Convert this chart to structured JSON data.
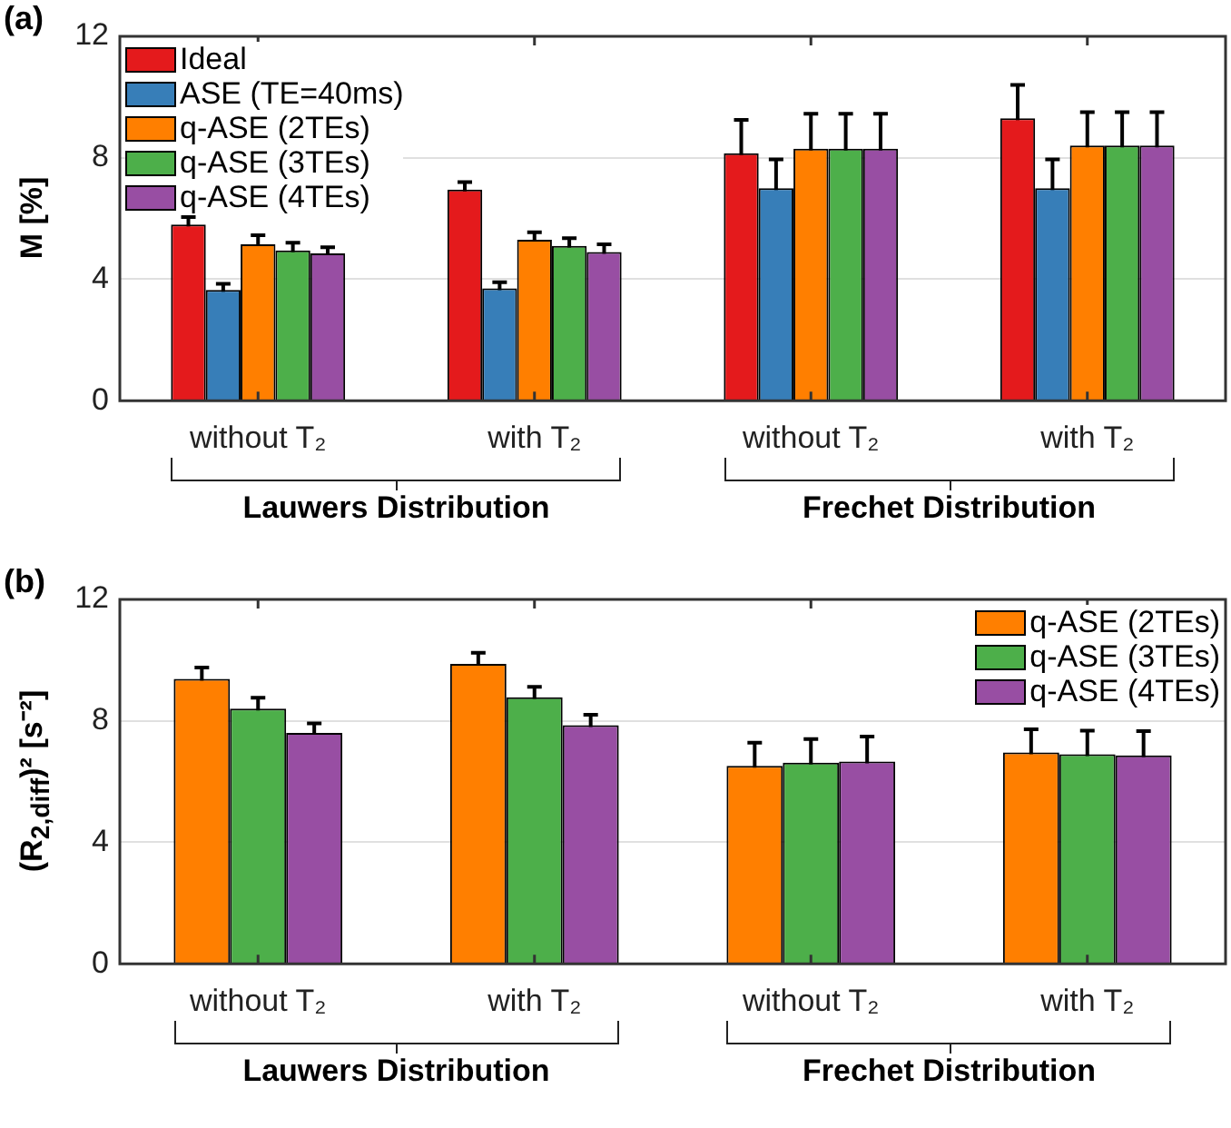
{
  "chart_data": [
    {
      "type": "bar",
      "title": "(a)",
      "ylabel": "M [%]",
      "categories": [
        "without T₂",
        "with T₂",
        "without T₂",
        "with T₂"
      ],
      "ylim": [
        0,
        12
      ],
      "yticks": [
        0,
        4,
        8,
        12
      ],
      "grid": "y",
      "legend": "top left",
      "annotations": [
        "Lauwers Distribution",
        "Frechet Distribution"
      ],
      "series": [
        {
          "name": "Ideal",
          "color": "#e41a1c",
          "values": [
            5.8,
            6.95,
            8.15,
            9.3
          ],
          "errors": [
            0.25,
            0.25,
            1.1,
            1.1
          ]
        },
        {
          "name": "ASE (TE=40ms)",
          "color": "#377eb8",
          "values": [
            3.65,
            3.7,
            7.0,
            7.0
          ],
          "errors": [
            0.2,
            0.2,
            0.95,
            0.95
          ]
        },
        {
          "name": "q-ASE (2TEs)",
          "color": "#ff7f00",
          "values": [
            5.15,
            5.3,
            8.3,
            8.4
          ],
          "errors": [
            0.3,
            0.25,
            1.15,
            1.1
          ]
        },
        {
          "name": "q-ASE (3TEs)",
          "color": "#4daf4a",
          "values": [
            4.95,
            5.1,
            8.3,
            8.4
          ],
          "errors": [
            0.25,
            0.25,
            1.15,
            1.1
          ]
        },
        {
          "name": "q-ASE (4TEs)",
          "color": "#984ea3",
          "values": [
            4.85,
            4.9,
            8.3,
            8.4
          ],
          "errors": [
            0.2,
            0.25,
            1.15,
            1.1
          ]
        }
      ]
    },
    {
      "type": "bar",
      "title": "(b)",
      "ylabel": "(R$_{2,diff}$)² [s⁻²]",
      "categories": [
        "without T₂",
        "with T₂",
        "without T₂",
        "with T₂"
      ],
      "ylim": [
        0,
        12
      ],
      "yticks": [
        0,
        4,
        8,
        12
      ],
      "grid": "y",
      "legend": "top right",
      "annotations": [
        "Lauwers Distribution",
        "Frechet Distribution"
      ],
      "series": [
        {
          "name": "q-ASE (2TEs)",
          "color": "#ff7f00",
          "values": [
            9.38,
            9.88,
            6.52,
            6.96
          ],
          "errors": [
            0.38,
            0.36,
            0.76,
            0.76
          ]
        },
        {
          "name": "q-ASE (3TEs)",
          "color": "#4daf4a",
          "values": [
            8.4,
            8.78,
            6.62,
            6.9
          ],
          "errors": [
            0.36,
            0.34,
            0.78,
            0.78
          ]
        },
        {
          "name": "q-ASE (4TEs)",
          "color": "#984ea3",
          "values": [
            7.6,
            7.86,
            6.66,
            6.86
          ],
          "errors": [
            0.32,
            0.34,
            0.82,
            0.8
          ]
        }
      ]
    }
  ]
}
